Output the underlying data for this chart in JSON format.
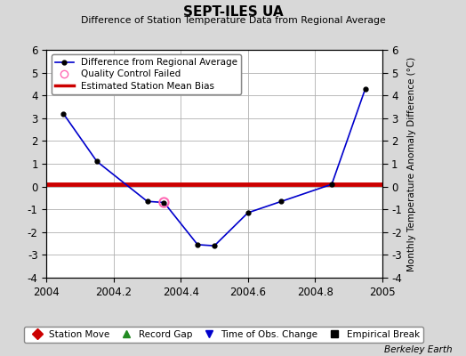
{
  "title": "SEPT-ILES UA",
  "subtitle": "Difference of Station Temperature Data from Regional Average",
  "ylabel_right": "Monthly Temperature Anomaly Difference (°C)",
  "credit": "Berkeley Earth",
  "xlim": [
    2004.0,
    2005.0
  ],
  "ylim": [
    -4,
    6
  ],
  "yticks": [
    -4,
    -3,
    -2,
    -1,
    0,
    1,
    2,
    3,
    4,
    5,
    6
  ],
  "xticks": [
    2004.0,
    2004.2,
    2004.4,
    2004.6,
    2004.8,
    2005.0
  ],
  "line_x": [
    2004.05,
    2004.15,
    2004.3,
    2004.35,
    2004.45,
    2004.5,
    2004.6,
    2004.7,
    2004.85,
    2004.95
  ],
  "line_y": [
    3.2,
    1.1,
    -0.65,
    -0.7,
    -2.55,
    -2.6,
    -1.15,
    -0.65,
    0.1,
    4.3
  ],
  "bias_y": 0.1,
  "qc_x": [
    2004.35
  ],
  "qc_y": [
    -0.7
  ],
  "line_color": "#0000cc",
  "bias_color": "#cc0000",
  "qc_color": "#ff69b4",
  "marker_color": "#000000",
  "background_color": "#d8d8d8",
  "plot_bg_color": "#ffffff",
  "grid_color": "#b0b0b0",
  "legend1_items": [
    {
      "label": "Difference from Regional Average"
    },
    {
      "label": "Quality Control Failed"
    },
    {
      "label": "Estimated Station Mean Bias"
    }
  ],
  "legend2_items": [
    {
      "label": "Station Move",
      "color": "#cc0000",
      "marker": "D"
    },
    {
      "label": "Record Gap",
      "color": "#228B22",
      "marker": "^"
    },
    {
      "label": "Time of Obs. Change",
      "color": "#0000cc",
      "marker": "v"
    },
    {
      "label": "Empirical Break",
      "color": "#000000",
      "marker": "s"
    }
  ]
}
